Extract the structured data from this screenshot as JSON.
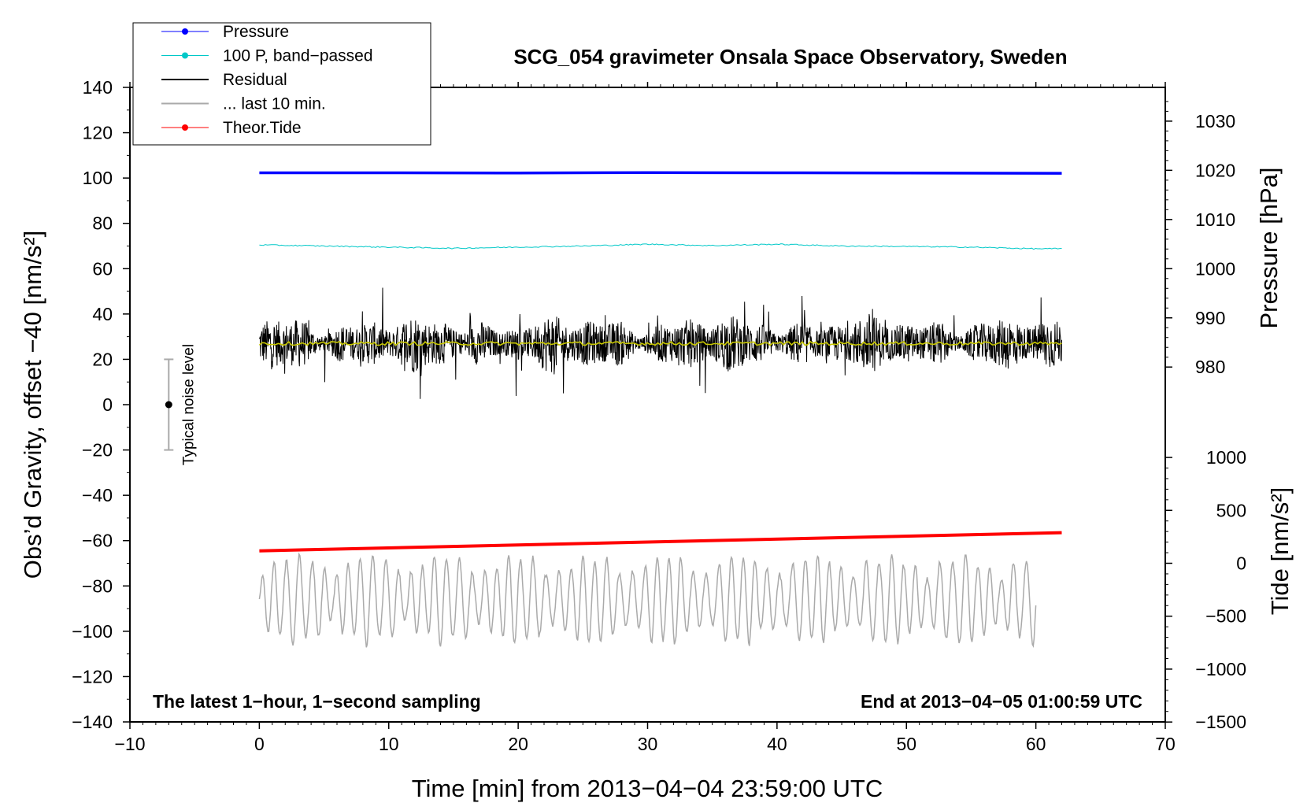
{
  "chart_data": {
    "type": "line",
    "title": "SCG_054 gravimeter Onsala Space Observatory, Sweden",
    "xlabel": "Time [min] from 2013−04−04 23:59:00 UTC",
    "ylabel": "Obs’d Gravity, offset −40 [nm/s²]",
    "xlim": [
      -10,
      70
    ],
    "ylim": [
      -140,
      140
    ],
    "x_ticks": [
      -10,
      0,
      10,
      20,
      30,
      40,
      50,
      60,
      70
    ],
    "x_tick_labels": [
      "−10",
      "0",
      "10",
      "20",
      "30",
      "40",
      "50",
      "60",
      "70"
    ],
    "y_ticks": [
      -140,
      -120,
      -100,
      -80,
      -60,
      -40,
      -20,
      0,
      20,
      40,
      60,
      80,
      100,
      120,
      140
    ],
    "y_tick_labels": [
      "−140",
      "−120",
      "−100",
      "−80",
      "−60",
      "−40",
      "−20",
      "0",
      "20",
      "40",
      "60",
      "80",
      "100",
      "120",
      "140"
    ],
    "right_pressure_axis": {
      "label": "Pressure [hPa]",
      "ticks": [
        980,
        990,
        1000,
        1010,
        1020,
        1030
      ],
      "tick_labels": [
        "980",
        "990",
        "1000",
        "1010",
        "1020",
        "1030"
      ],
      "ref_hpa": 1000,
      "ref_gravity": 60,
      "gravity_per_hpa": 2.17
    },
    "right_tide_axis": {
      "label": "Tide [nm/s²]",
      "ticks": [
        -1500,
        -1000,
        -500,
        0,
        500,
        1000
      ],
      "tick_labels": [
        "−1500",
        "−1000",
        "−500",
        "0",
        "500",
        "1000"
      ],
      "ref_tide": 0,
      "ref_gravity": -70,
      "gravity_per_unit": 0.0467
    },
    "legend": {
      "placement": "top-left",
      "entries": [
        {
          "label": "Pressure",
          "color": "#0000ff",
          "marker": true
        },
        {
          "label": "100 P, band−passed",
          "color": "#00c8c8",
          "marker": true
        },
        {
          "label": "Residual",
          "color": "#000000",
          "marker": false
        },
        {
          "label": "... last 10 min.",
          "color": "#aaaaaa",
          "marker": false
        },
        {
          "label": "Theor.Tide",
          "color": "#ff0000",
          "marker": true
        }
      ]
    },
    "series": [
      {
        "name": "Pressure",
        "color": "#0000ff",
        "x": [
          0,
          10,
          20,
          30,
          40,
          50,
          62
        ],
        "y": [
          102.3,
          102.3,
          102.2,
          102.4,
          102.3,
          102.2,
          102.1
        ]
      },
      {
        "name": "100 P, band−passed",
        "color": "#00c8c8",
        "x": [
          0,
          5,
          10,
          15,
          20,
          25,
          30,
          35,
          40,
          45,
          50,
          55,
          60,
          62
        ],
        "y": [
          70.5,
          70,
          69.5,
          69,
          69.5,
          70,
          70.8,
          70.2,
          70.8,
          70,
          69.8,
          69.5,
          68.8,
          68.8
        ]
      },
      {
        "name": "Residual",
        "color": "#000000",
        "x_range": [
          0,
          62
        ],
        "center": 27,
        "typical_range": [
          10,
          45
        ],
        "extremes": {
          "max": 57,
          "min": -1
        }
      },
      {
        "name": "Residual (smoothed)",
        "color": "#c8c800",
        "x_range": [
          0,
          62
        ],
        "y": 27
      },
      {
        "name": "... last 10 min.",
        "color": "#aaaaaa",
        "x_range": [
          0,
          60
        ],
        "center": -86,
        "range": [
          -107,
          -64
        ]
      },
      {
        "name": "Theor.Tide",
        "color": "#ff0000",
        "x": [
          0,
          62
        ],
        "y": [
          -64.5,
          -56.5
        ]
      }
    ],
    "noise_bar": {
      "label": "Typical noise level",
      "x": -7,
      "center": 0,
      "range": [
        -20,
        20
      ]
    },
    "annotations": {
      "left": "The latest 1−hour, 1−second sampling",
      "right": "End at 2013−04−05 01:00:59 UTC"
    }
  }
}
